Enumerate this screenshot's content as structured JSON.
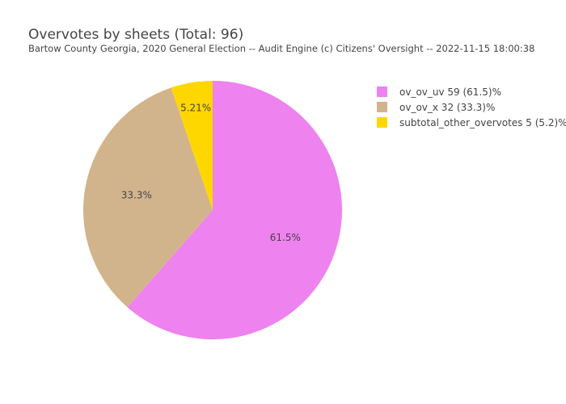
{
  "chart_data": {
    "type": "pie",
    "title": "Overvotes by sheets (Total: 96)",
    "subtitle": "Bartow County Georgia, 2020 General Election -- Audit Engine (c) Citizens' Oversight -- 2022-11-15 18:00:38",
    "legend_position": "right",
    "slices": [
      {
        "label": "ov_ov_uv",
        "value": 59,
        "legend_text": "ov_ov_uv 59 (61.5)%",
        "percent_label": "61.5%",
        "color": "#ee82ee"
      },
      {
        "label": "ov_ov_x",
        "value": 32,
        "legend_text": "ov_ov_x 32 (33.3)%",
        "percent_label": "33.3%",
        "color": "#d2b48c"
      },
      {
        "label": "subtotal_other_overvotes",
        "value": 5,
        "legend_text": "subtotal_other_overvotes 5 (5.2)%",
        "percent_label": "5.21%",
        "color": "#ffd700"
      }
    ]
  }
}
